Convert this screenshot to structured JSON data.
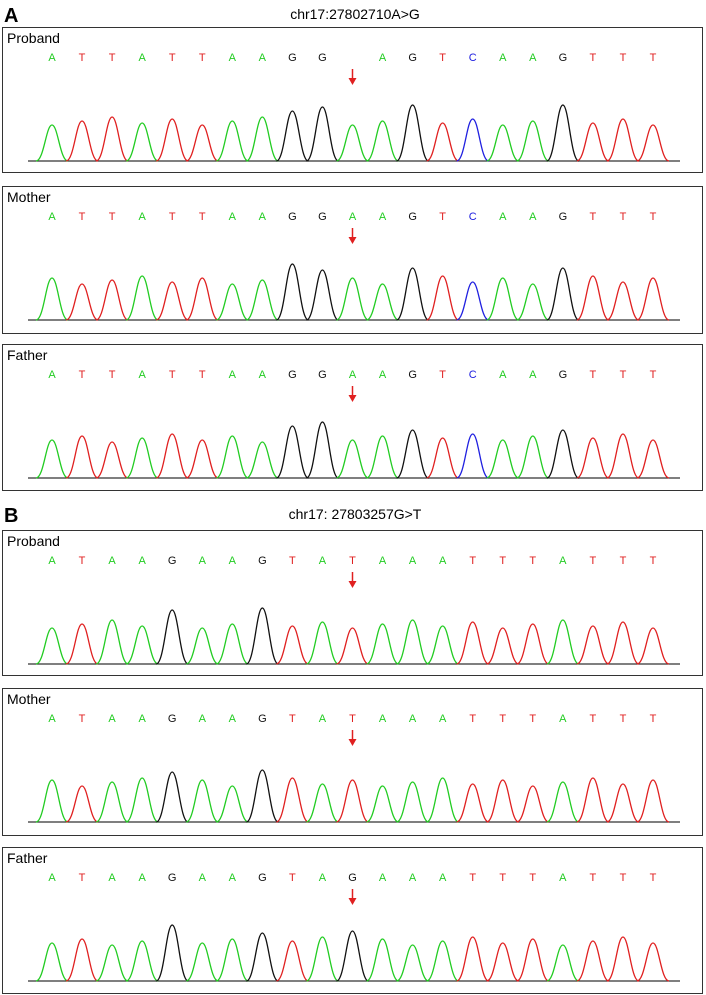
{
  "panels": [
    {
      "label": "A",
      "title": "chr17:27802710A>G",
      "tracks": [
        {
          "name": "Proband",
          "bases": [
            "A",
            "T",
            "T",
            "A",
            "T",
            "T",
            "A",
            "A",
            "G",
            "G",
            null,
            "A",
            "G",
            "T",
            "C",
            "A",
            "A",
            "G",
            "T",
            "T",
            "T"
          ]
        },
        {
          "name": "Mother",
          "bases": [
            "A",
            "T",
            "T",
            "A",
            "T",
            "T",
            "A",
            "A",
            "G",
            "G",
            "A",
            "A",
            "G",
            "T",
            "C",
            "A",
            "A",
            "G",
            "T",
            "T",
            "T"
          ]
        },
        {
          "name": "Father",
          "bases": [
            "A",
            "T",
            "T",
            "A",
            "T",
            "T",
            "A",
            "A",
            "G",
            "G",
            "A",
            "A",
            "G",
            "T",
            "C",
            "A",
            "A",
            "G",
            "T",
            "T",
            "T"
          ]
        }
      ]
    },
    {
      "label": "B",
      "title": "chr17: 27803257G>T",
      "tracks": [
        {
          "name": "Proband",
          "bases": [
            "A",
            "T",
            "A",
            "A",
            "G",
            "A",
            "A",
            "G",
            "T",
            "A",
            "T",
            "A",
            "A",
            "A",
            "T",
            "T",
            "T",
            "A",
            "T",
            "T",
            "T"
          ]
        },
        {
          "name": "Mother",
          "bases": [
            "A",
            "T",
            "A",
            "A",
            "G",
            "A",
            "A",
            "G",
            "T",
            "A",
            "T",
            "A",
            "A",
            "A",
            "T",
            "T",
            "T",
            "A",
            "T",
            "T",
            "T"
          ]
        },
        {
          "name": "Father",
          "bases": [
            "A",
            "T",
            "A",
            "A",
            "G",
            "A",
            "A",
            "G",
            "T",
            "A",
            "G",
            "A",
            "A",
            "A",
            "T",
            "T",
            "T",
            "A",
            "T",
            "T",
            "T"
          ]
        }
      ]
    }
  ]
}
